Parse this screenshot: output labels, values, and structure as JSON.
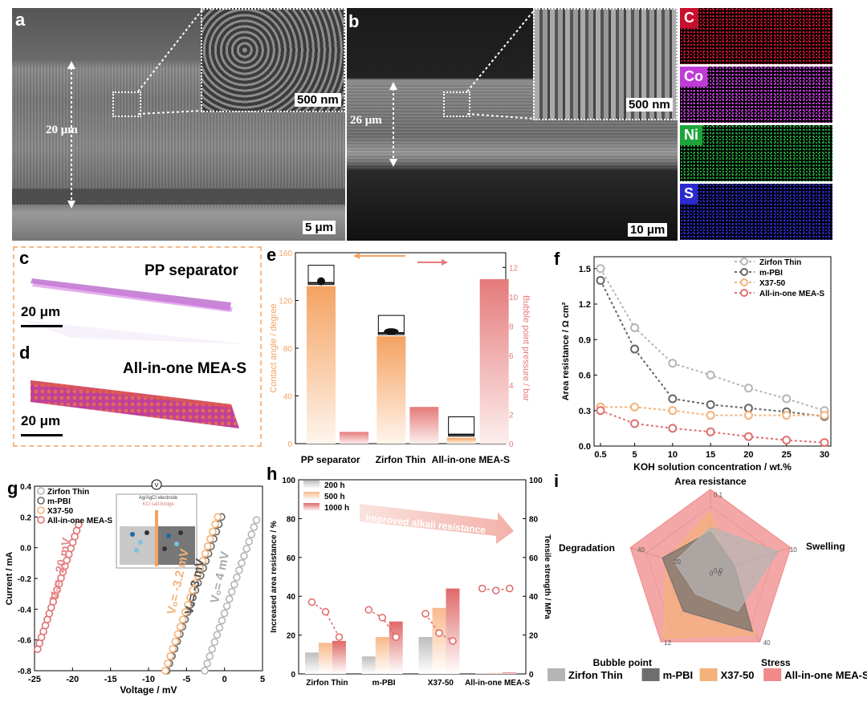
{
  "panels": {
    "a": {
      "label": "a",
      "thickness": "20 μm",
      "inset_scale": "500 nm",
      "scale": "5 μm"
    },
    "b": {
      "label": "b",
      "thickness": "26 μm",
      "inset_scale": "500 nm",
      "scale": "10 μm"
    },
    "eds": {
      "elements": [
        {
          "symbol": "C",
          "color": "#c8102e"
        },
        {
          "symbol": "Co",
          "color": "#c03bd6"
        },
        {
          "symbol": "Ni",
          "color": "#1ea43a"
        },
        {
          "symbol": "S",
          "color": "#2a2ad0"
        }
      ]
    },
    "c": {
      "label": "c",
      "title": "PP separator",
      "scale": "20 μm"
    },
    "d": {
      "label": "d",
      "title": "All-in-one MEA-S",
      "scale": "20 μm"
    },
    "e": {
      "label": "e"
    },
    "f": {
      "label": "f"
    },
    "g": {
      "label": "g",
      "inset_top": "V",
      "inset_line1": "Ag/AgCl electrode",
      "inset_line2": "KCl salt-bridge",
      "annotations": [
        "V₀= -20 mV",
        "V₀= -3.2 mV",
        "V₀= -3 mV",
        "V₀= 4 mV"
      ]
    },
    "h": {
      "label": "h",
      "arrow_text": "Improved alkali resistance"
    },
    "i": {
      "label": "i"
    }
  },
  "chart_data": [
    {
      "panel": "e",
      "type": "bar",
      "categories": [
        "PP separator",
        "Zirfon Thin",
        "All-in-one MEA-S"
      ],
      "series": [
        {
          "name": "",
          "axis": "left",
          "values": [
            132,
            90,
            5
          ],
          "color": "#f4a261"
        },
        {
          "name": "",
          "axis": "right",
          "values": [
            0.8,
            2.5,
            11.2
          ],
          "color": "#e57a7a"
        }
      ],
      "ylabel": "Contact angle / degree",
      "y2label": "Bubble point pressure / bar",
      "ylim": [
        0,
        160
      ],
      "y2lim": [
        0,
        13
      ],
      "yticks": [
        0,
        40,
        80,
        120,
        160
      ],
      "y2ticks": [
        0,
        2,
        4,
        6,
        8,
        10,
        12
      ]
    },
    {
      "panel": "f",
      "type": "line",
      "x": [
        0.5,
        5,
        10,
        15,
        20,
        25,
        30
      ],
      "series": [
        {
          "name": "Zirfon Thin",
          "values": [
            1.5,
            1.0,
            0.7,
            0.6,
            0.49,
            0.4,
            0.3
          ],
          "color": "#b5b5b5"
        },
        {
          "name": "m-PBI",
          "values": [
            1.4,
            0.82,
            0.4,
            0.35,
            0.32,
            0.29,
            0.25
          ],
          "color": "#666666"
        },
        {
          "name": "X37-50",
          "values": [
            0.33,
            0.33,
            0.3,
            0.26,
            0.26,
            0.26,
            0.26
          ],
          "color": "#f4b27a"
        },
        {
          "name": "All-in-one MEA-S",
          "values": [
            0.3,
            0.19,
            0.15,
            0.12,
            0.08,
            0.05,
            0.03
          ],
          "color": "#e07070"
        }
      ],
      "xlabel": "KOH solution concentration / wt.%",
      "ylabel": "Area resistance / Ω cm²",
      "xticks": [
        0.5,
        5,
        10,
        15,
        20,
        25,
        30
      ],
      "yticks": [
        0.0,
        0.3,
        0.6,
        0.9,
        1.2,
        1.5
      ],
      "ylim": [
        0,
        1.6
      ],
      "legend": "top-right"
    },
    {
      "panel": "g",
      "type": "scatter",
      "series": [
        {
          "name": "Zirfon Thin",
          "x0": -2.6,
          "x1": 4.2,
          "y0": -0.8,
          "y1": 0.18,
          "color": "#b5b5b5"
        },
        {
          "name": "m-PBI",
          "x0": -7.6,
          "x1": -0.4,
          "y0": -0.8,
          "y1": 0.2,
          "color": "#666666"
        },
        {
          "name": "X37-50",
          "x0": -7.8,
          "x1": -0.9,
          "y0": -0.8,
          "y1": 0.2,
          "color": "#f4b27a"
        },
        {
          "name": "All-in-one MEA-S",
          "x0": -24.6,
          "x1": -19.2,
          "y0": -0.66,
          "y1": 0.15,
          "color": "#e07070"
        }
      ],
      "xlabel": "Voltage / mV",
      "ylabel": "Current / mA",
      "xlim": [
        -25,
        5
      ],
      "ylim": [
        -0.8,
        0.4
      ],
      "xticks": [
        -25,
        -20,
        -15,
        -10,
        -5,
        0,
        5
      ],
      "yticks": [
        -0.8,
        -0.6,
        -0.4,
        -0.2,
        0.0,
        0.2,
        0.4
      ],
      "legend": "top-left"
    },
    {
      "panel": "h",
      "type": "bar",
      "categories": [
        "Zirfon Thin",
        "m-PBI",
        "X37-50",
        "All-in-one MEA-S"
      ],
      "series": [
        {
          "name": "200 h",
          "values": [
            11,
            9,
            19,
            0.3
          ],
          "color": "#bdbdbd"
        },
        {
          "name": "500 h",
          "values": [
            16,
            19,
            34,
            0.5
          ],
          "color": "#f7b98a"
        },
        {
          "name": "1000 h",
          "values": [
            17,
            27,
            44,
            0.8
          ],
          "color": "#e06868"
        }
      ],
      "line_series": {
        "name": "",
        "values": [
          [
            37,
            32,
            19
          ],
          [
            33,
            29,
            19
          ],
          [
            31,
            21,
            17
          ],
          [
            44,
            43,
            44
          ]
        ]
      },
      "ylabel": "Increased area resistance / %",
      "y2label": "Tensile strength / MPa",
      "ylim": [
        0,
        100
      ],
      "yticks": [
        0,
        20,
        40,
        60,
        80,
        100
      ],
      "y2ticks": [
        0,
        20,
        40,
        60,
        80,
        100
      ],
      "legend": "top-left"
    },
    {
      "panel": "i",
      "type": "radar",
      "axes": [
        "Area resistance",
        "Swelling",
        "Stress",
        "Bubble point",
        "Degradation"
      ],
      "axis_ticks": [
        [
          "0.0",
          "0.1"
        ],
        [
          "0",
          "10"
        ],
        [
          "40"
        ],
        [
          "12"
        ],
        [
          "0",
          "20",
          "40"
        ]
      ],
      "series": [
        {
          "name": "Zirfon Thin",
          "values": [
            0.55,
            0.85,
            0.55,
            0.3,
            0.45
          ],
          "color": "#b5b5b5"
        },
        {
          "name": "m-PBI",
          "values": [
            0.5,
            0.3,
            0.85,
            0.55,
            0.6
          ],
          "color": "#6e6e6e"
        },
        {
          "name": "X37-50",
          "values": [
            0.75,
            0.25,
            0.9,
            0.95,
            0.55
          ],
          "color": "#f4b27a"
        },
        {
          "name": "All-in-one MEA-S",
          "values": [
            1.0,
            1.0,
            1.0,
            1.0,
            1.0
          ],
          "color": "#f08a8a"
        }
      ],
      "legend": "bottom"
    }
  ]
}
